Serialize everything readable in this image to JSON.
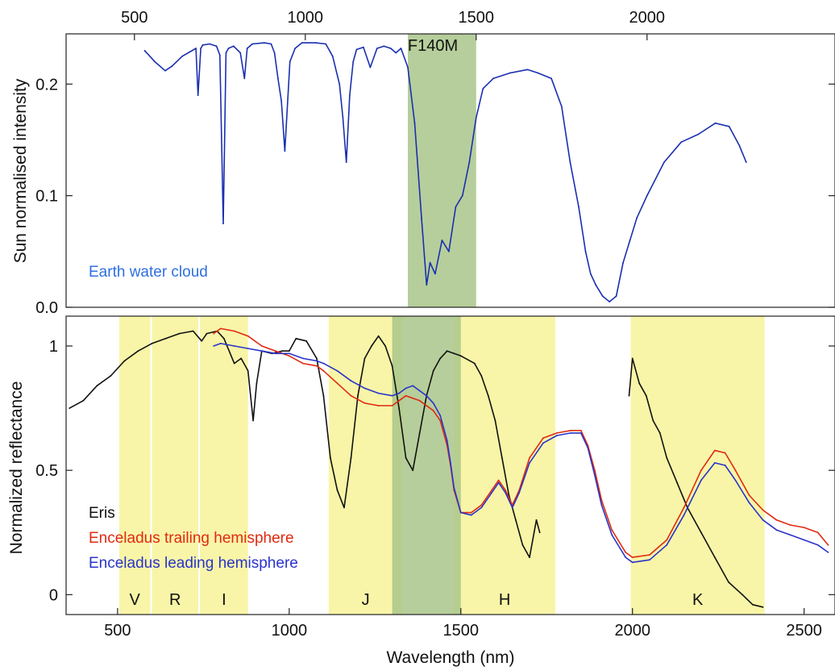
{
  "chart_data": [
    {
      "type": "line",
      "panel": "top",
      "ylabel": "Sun normalised intensity",
      "xlim": [
        300,
        2550
      ],
      "ylim": [
        0,
        0.245
      ],
      "x_ticks": [
        500,
        1000,
        1500,
        2000
      ],
      "x_tick_labels": [
        "500",
        "1000",
        "1500",
        "2000"
      ],
      "x_tick_position": "top",
      "y_ticks": [
        0.0,
        0.1,
        0.2
      ],
      "y_tick_labels": [
        "0.0",
        "0.1",
        "0.2"
      ],
      "filter_band": {
        "label": "F140M",
        "x0": 1300,
        "x1": 1500,
        "color": "#a9c58a"
      },
      "annotation": {
        "text": "Earth water cloud",
        "color": "#2f6fe0"
      },
      "series": [
        {
          "color": "#1a2fb0",
          "x": [
            530,
            560,
            590,
            610,
            640,
            680,
            686,
            694,
            700,
            720,
            740,
            750,
            760,
            768,
            775,
            790,
            810,
            822,
            830,
            845,
            880,
            900,
            910,
            920,
            930,
            940,
            955,
            970,
            990,
            1030,
            1060,
            1080,
            1100,
            1110,
            1120,
            1130,
            1140,
            1150,
            1170,
            1190,
            1210,
            1230,
            1250,
            1265,
            1280,
            1300,
            1320,
            1340,
            1355,
            1365,
            1380,
            1400,
            1420,
            1440,
            1460,
            1480,
            1500,
            1520,
            1550,
            1600,
            1650,
            1680,
            1720,
            1750,
            1775,
            1800,
            1820,
            1835,
            1850,
            1870,
            1890,
            1910,
            1930,
            1950,
            1970,
            2000,
            2050,
            2100,
            2150,
            2200,
            2240,
            2270,
            2290
          ],
          "y": [
            0.23,
            0.22,
            0.212,
            0.216,
            0.225,
            0.232,
            0.19,
            0.232,
            0.235,
            0.236,
            0.234,
            0.226,
            0.075,
            0.228,
            0.232,
            0.234,
            0.228,
            0.205,
            0.232,
            0.236,
            0.237,
            0.236,
            0.228,
            0.205,
            0.185,
            0.14,
            0.22,
            0.232,
            0.237,
            0.237,
            0.236,
            0.225,
            0.2,
            0.17,
            0.13,
            0.19,
            0.22,
            0.231,
            0.233,
            0.215,
            0.232,
            0.234,
            0.232,
            0.228,
            0.232,
            0.215,
            0.165,
            0.08,
            0.02,
            0.04,
            0.03,
            0.06,
            0.05,
            0.09,
            0.1,
            0.13,
            0.17,
            0.196,
            0.205,
            0.21,
            0.213,
            0.21,
            0.205,
            0.18,
            0.13,
            0.09,
            0.05,
            0.03,
            0.02,
            0.01,
            0.005,
            0.01,
            0.04,
            0.06,
            0.08,
            0.1,
            0.13,
            0.148,
            0.155,
            0.165,
            0.162,
            0.145,
            0.13
          ]
        }
      ]
    },
    {
      "type": "line",
      "panel": "bottom",
      "xlabel": "Wavelength (nm)",
      "ylabel": "Normalized  reflectance",
      "xlim": [
        350,
        2590
      ],
      "ylim": [
        -0.08,
        1.12
      ],
      "x_ticks": [
        500,
        1000,
        1500,
        2000,
        2500
      ],
      "x_tick_labels": [
        "500",
        "1000",
        "1500",
        "2000",
        "2500"
      ],
      "y_ticks": [
        0,
        0.5,
        1
      ],
      "y_tick_labels": [
        "0",
        "0.5",
        "1"
      ],
      "filter_band": {
        "x0": 1300,
        "x1": 1500,
        "color": "#a9c58a"
      },
      "bands": [
        {
          "label": "V",
          "x0": 505,
          "x1": 595
        },
        {
          "label": "R",
          "x0": 600,
          "x1": 735
        },
        {
          "label": "I",
          "x0": 740,
          "x1": 880
        },
        {
          "label": "J",
          "x0": 1115,
          "x1": 1330
        },
        {
          "label": "H",
          "x0": 1480,
          "x1": 1775
        },
        {
          "label": "K",
          "x0": 1995,
          "x1": 2385
        }
      ],
      "band_color": "#f8f5a8",
      "series": [
        {
          "name": "Eris",
          "color": "#111111",
          "x": [
            360,
            400,
            440,
            480,
            520,
            560,
            600,
            640,
            680,
            720,
            745,
            760,
            790,
            810,
            840,
            860,
            880,
            895,
            905,
            920,
            950,
            980,
            1000,
            1020,
            1050,
            1080,
            1100,
            1120,
            1140,
            1160,
            1180,
            1200,
            1220,
            1240,
            1260,
            1280,
            1300,
            1320,
            1340,
            1360,
            1380,
            1400,
            1420,
            1440,
            1460,
            1480,
            1500,
            1540,
            1560,
            1580,
            1600,
            1620,
            1640,
            1660,
            1680,
            1700,
            1720,
            1730,
            null,
            1990,
            2000,
            2020,
            2040,
            2060,
            2080,
            2100,
            2130,
            2160,
            2200,
            2240,
            2280,
            2320,
            2350,
            2380
          ],
          "y": [
            0.75,
            0.78,
            0.84,
            0.88,
            0.94,
            0.98,
            1.01,
            1.03,
            1.05,
            1.06,
            1.02,
            1.05,
            1.06,
            1.03,
            0.93,
            0.95,
            0.9,
            0.7,
            0.85,
            0.98,
            0.97,
            0.98,
            0.98,
            1.03,
            1.02,
            0.95,
            0.8,
            0.55,
            0.42,
            0.35,
            0.55,
            0.8,
            0.95,
            1.0,
            1.04,
            1.0,
            0.92,
            0.75,
            0.55,
            0.5,
            0.65,
            0.8,
            0.9,
            0.95,
            0.98,
            0.97,
            0.96,
            0.93,
            0.88,
            0.8,
            0.7,
            0.55,
            0.4,
            0.3,
            0.2,
            0.15,
            0.3,
            0.25,
            null,
            0.8,
            0.95,
            0.85,
            0.8,
            0.7,
            0.65,
            0.55,
            0.45,
            0.35,
            0.25,
            0.15,
            0.05,
            0.0,
            -0.04,
            -0.05
          ]
        },
        {
          "name": "Enceladus trailing hemisphere",
          "color": "#e02a10",
          "x": [
            780,
            800,
            840,
            880,
            920,
            960,
            1000,
            1040,
            1080,
            1100,
            1140,
            1180,
            1220,
            1260,
            1300,
            1320,
            1340,
            1360,
            1380,
            1400,
            1420,
            1440,
            1460,
            1470,
            1480,
            1500,
            1530,
            1560,
            1590,
            1610,
            1630,
            1650,
            1670,
            1700,
            1740,
            1780,
            1820,
            1850,
            1870,
            1890,
            1910,
            1940,
            1980,
            2000,
            2050,
            2100,
            2150,
            2200,
            2240,
            2270,
            2300,
            2340,
            2380,
            2420,
            2460,
            2500,
            2540,
            2570
          ],
          "y": [
            1.05,
            1.07,
            1.06,
            1.04,
            1.0,
            0.98,
            0.96,
            0.93,
            0.92,
            0.9,
            0.85,
            0.8,
            0.77,
            0.76,
            0.76,
            0.78,
            0.8,
            0.79,
            0.78,
            0.76,
            0.74,
            0.7,
            0.6,
            0.52,
            0.42,
            0.33,
            0.33,
            0.36,
            0.42,
            0.46,
            0.42,
            0.36,
            0.42,
            0.55,
            0.63,
            0.65,
            0.66,
            0.66,
            0.6,
            0.5,
            0.38,
            0.26,
            0.17,
            0.15,
            0.16,
            0.22,
            0.35,
            0.5,
            0.58,
            0.57,
            0.5,
            0.4,
            0.34,
            0.3,
            0.28,
            0.27,
            0.25,
            0.2
          ]
        },
        {
          "name": "Enceladus leading hemisphere",
          "color": "#2a34c8",
          "x": [
            780,
            800,
            840,
            880,
            920,
            960,
            1000,
            1040,
            1080,
            1100,
            1140,
            1180,
            1220,
            1260,
            1300,
            1320,
            1340,
            1360,
            1380,
            1400,
            1420,
            1440,
            1460,
            1470,
            1480,
            1500,
            1530,
            1560,
            1590,
            1610,
            1630,
            1650,
            1670,
            1700,
            1740,
            1780,
            1820,
            1850,
            1870,
            1890,
            1910,
            1940,
            1980,
            2000,
            2050,
            2100,
            2150,
            2200,
            2240,
            2270,
            2300,
            2340,
            2380,
            2420,
            2460,
            2500,
            2540,
            2570
          ],
          "y": [
            1.0,
            1.01,
            1.0,
            0.99,
            0.98,
            0.97,
            0.97,
            0.95,
            0.94,
            0.93,
            0.9,
            0.86,
            0.83,
            0.81,
            0.8,
            0.81,
            0.83,
            0.84,
            0.82,
            0.8,
            0.77,
            0.72,
            0.62,
            0.53,
            0.43,
            0.33,
            0.32,
            0.35,
            0.41,
            0.45,
            0.41,
            0.35,
            0.41,
            0.53,
            0.61,
            0.64,
            0.65,
            0.65,
            0.59,
            0.48,
            0.36,
            0.24,
            0.15,
            0.13,
            0.14,
            0.2,
            0.32,
            0.46,
            0.53,
            0.52,
            0.46,
            0.37,
            0.3,
            0.26,
            0.24,
            0.22,
            0.2,
            0.17
          ]
        }
      ],
      "legend": {
        "placement": "lower-left",
        "entries": [
          {
            "text": "Eris",
            "color": "#111111"
          },
          {
            "text": "Enceladus trailing hemisphere",
            "color": "#e02a10"
          },
          {
            "text": "Enceladus leading hemisphere",
            "color": "#2a34c8"
          }
        ]
      }
    }
  ]
}
